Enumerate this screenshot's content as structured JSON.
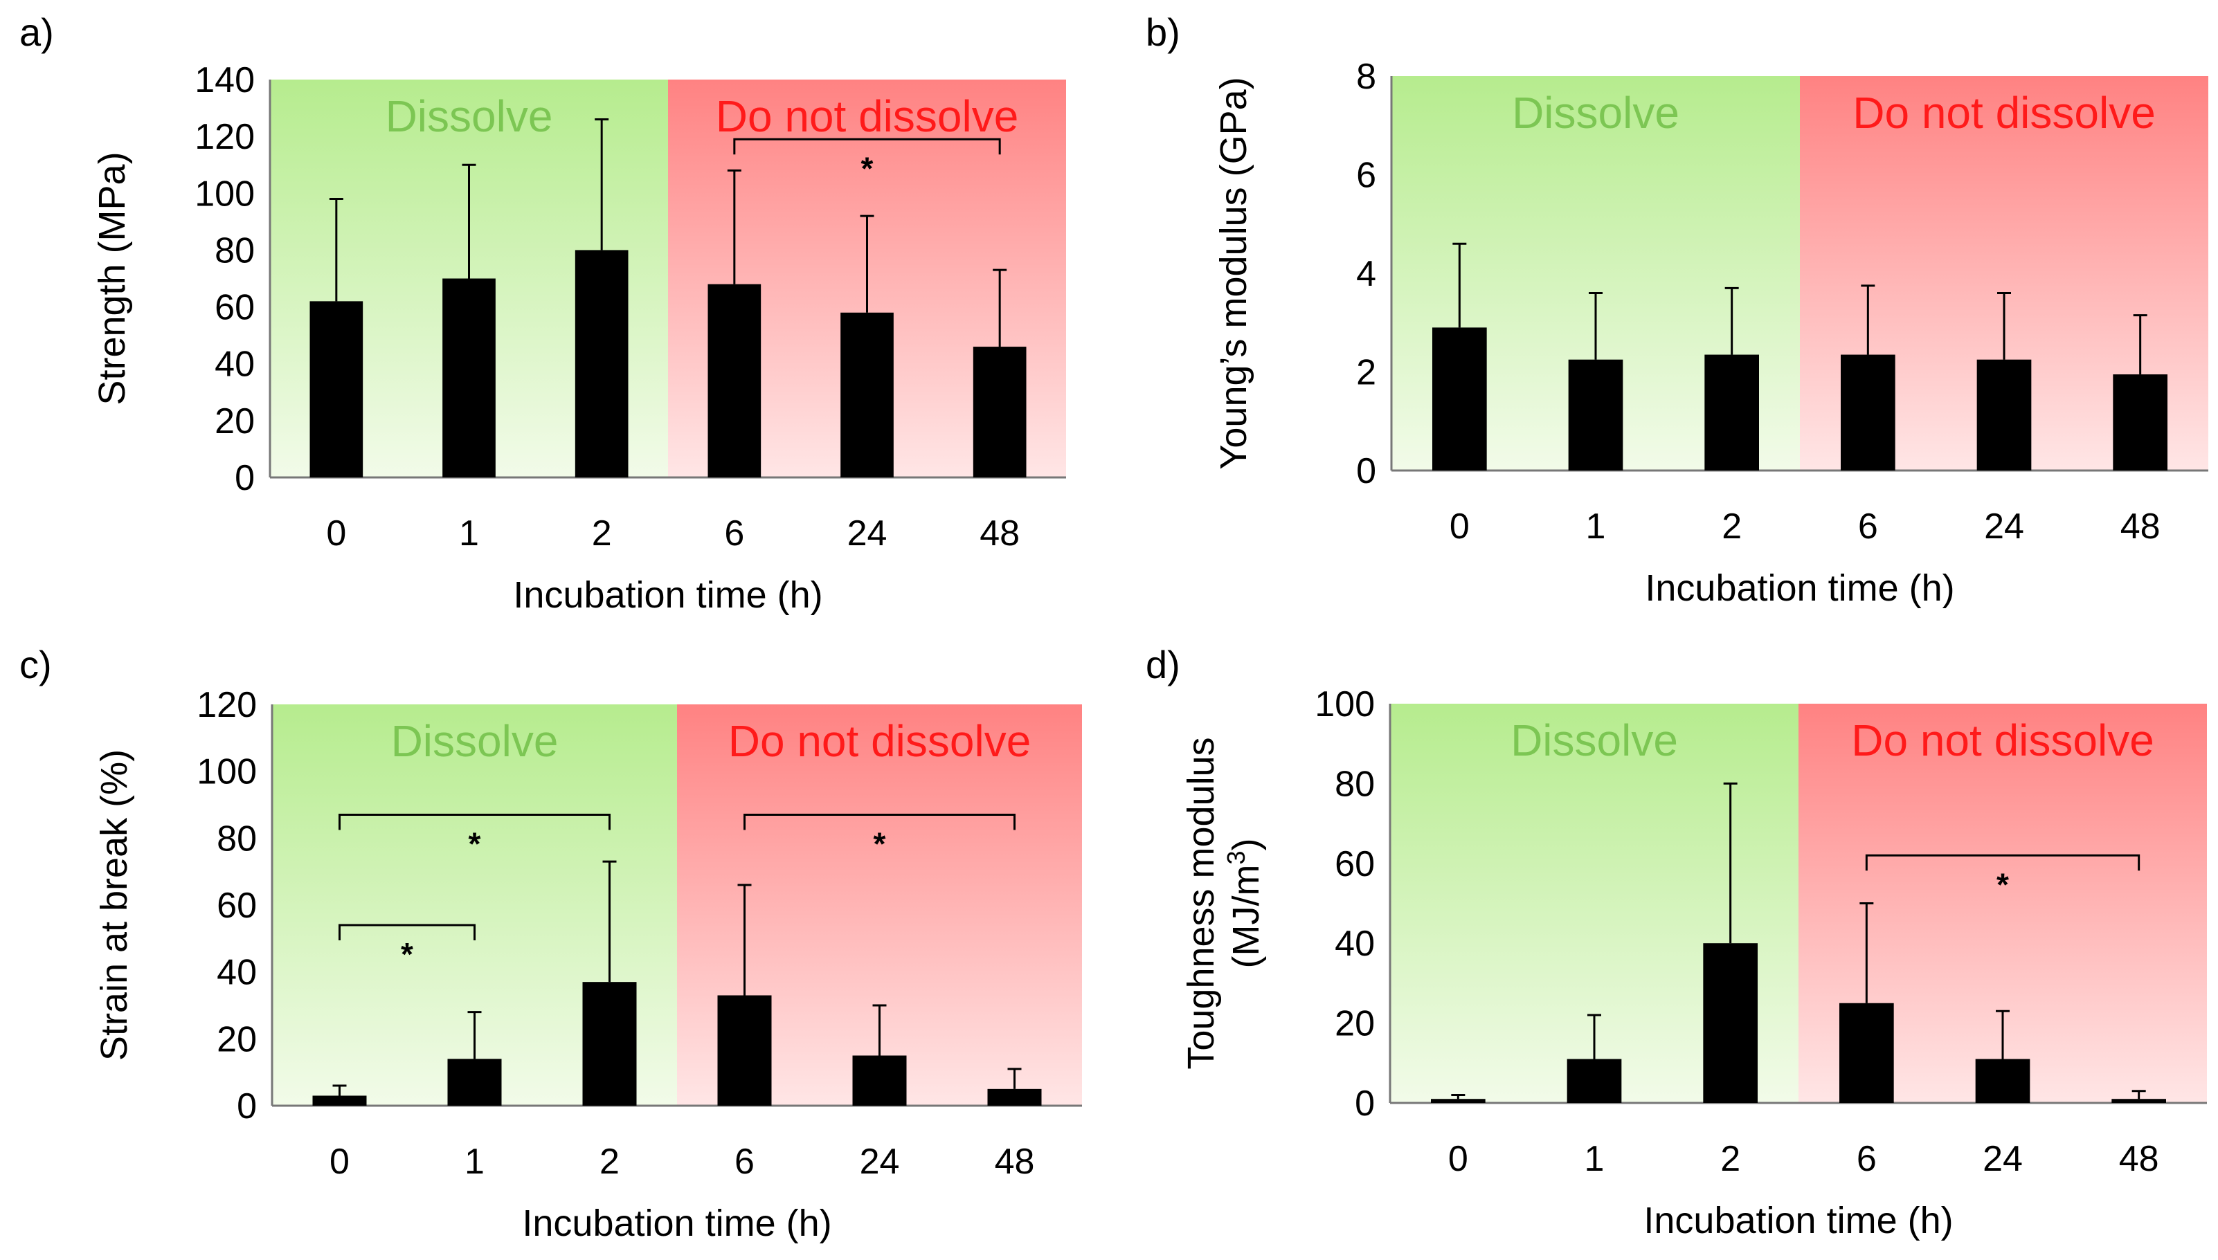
{
  "figure": {
    "x_title": "Incubation time (h)",
    "region_labels": {
      "dissolve": "Dissolve",
      "not_dissolve": "Do not dissolve"
    },
    "colors": {
      "bar": "#000000",
      "dissolve_label": "#7cc653",
      "not_dissolve_label": "#ff1a1a",
      "green_top": "#b6ec8e",
      "green_bottom": "#f2fbe9",
      "red_top": "#ff8282",
      "red_bottom": "#ffe6e6"
    }
  },
  "chart_data": [
    {
      "type": "bar",
      "panel": "a)",
      "categories": [
        "0",
        "1",
        "2",
        "6",
        "24",
        "48"
      ],
      "values": [
        62,
        70,
        80,
        68,
        58,
        46
      ],
      "errors": [
        36,
        40,
        46,
        40,
        34,
        27
      ],
      "ylabel": "Strength (MPa)",
      "xlabel": "Incubation time (h)",
      "ylim": [
        0,
        140
      ],
      "yticks": [
        0,
        20,
        40,
        60,
        80,
        100,
        120,
        140
      ],
      "regions": [
        {
          "label": "Dissolve",
          "from": 0,
          "to": 3
        },
        {
          "label": "Do not dissolve",
          "from": 3,
          "to": 6
        }
      ],
      "significance": [
        {
          "from": 3,
          "to": 5,
          "level": 119,
          "label": "*"
        }
      ]
    },
    {
      "type": "bar",
      "panel": "b)",
      "categories": [
        "0",
        "1",
        "2",
        "6",
        "24",
        "48"
      ],
      "values": [
        2.9,
        2.25,
        2.35,
        2.35,
        2.25,
        1.95
      ],
      "errors": [
        1.7,
        1.35,
        1.35,
        1.4,
        1.35,
        1.2
      ],
      "ylabel": "Young’s modulus (GPa)",
      "xlabel": "Incubation time (h)",
      "ylim": [
        0,
        8
      ],
      "yticks": [
        0,
        2,
        4,
        6,
        8
      ],
      "regions": [
        {
          "label": "Dissolve",
          "from": 0,
          "to": 3
        },
        {
          "label": "Do not dissolve",
          "from": 3,
          "to": 6
        }
      ],
      "significance": []
    },
    {
      "type": "bar",
      "panel": "c)",
      "categories": [
        "0",
        "1",
        "2",
        "6",
        "24",
        "48"
      ],
      "values": [
        3,
        14,
        37,
        33,
        15,
        5
      ],
      "errors": [
        3,
        14,
        36,
        33,
        15,
        6
      ],
      "ylabel": "Strain at break (%)",
      "xlabel": "Incubation time (h)",
      "ylim": [
        0,
        120
      ],
      "yticks": [
        0,
        20,
        40,
        60,
        80,
        100,
        120
      ],
      "regions": [
        {
          "label": "Dissolve",
          "from": 0,
          "to": 3
        },
        {
          "label": "Do not dissolve",
          "from": 3,
          "to": 6
        }
      ],
      "significance": [
        {
          "from": 0,
          "to": 2,
          "level": 87,
          "label": "*"
        },
        {
          "from": 0,
          "to": 1,
          "level": 54,
          "label": "*"
        },
        {
          "from": 3,
          "to": 5,
          "level": 87,
          "label": "*"
        }
      ]
    },
    {
      "type": "bar",
      "panel": "d)",
      "categories": [
        "0",
        "1",
        "2",
        "6",
        "24",
        "48"
      ],
      "values": [
        1,
        11,
        40,
        25,
        11,
        1
      ],
      "errors": [
        1,
        11,
        40,
        25,
        12,
        2
      ],
      "ylabel_lines": [
        "Toughness modulus",
        "(MJ/m",
        "3",
        ")"
      ],
      "xlabel": "Incubation time (h)",
      "ylim": [
        0,
        100
      ],
      "yticks": [
        0,
        20,
        40,
        60,
        80,
        100
      ],
      "regions": [
        {
          "label": "Dissolve",
          "from": 0,
          "to": 3
        },
        {
          "label": "Do not dissolve",
          "from": 3,
          "to": 6
        }
      ],
      "significance": [
        {
          "from": 3,
          "to": 5,
          "level": 62,
          "label": "*"
        }
      ]
    }
  ]
}
